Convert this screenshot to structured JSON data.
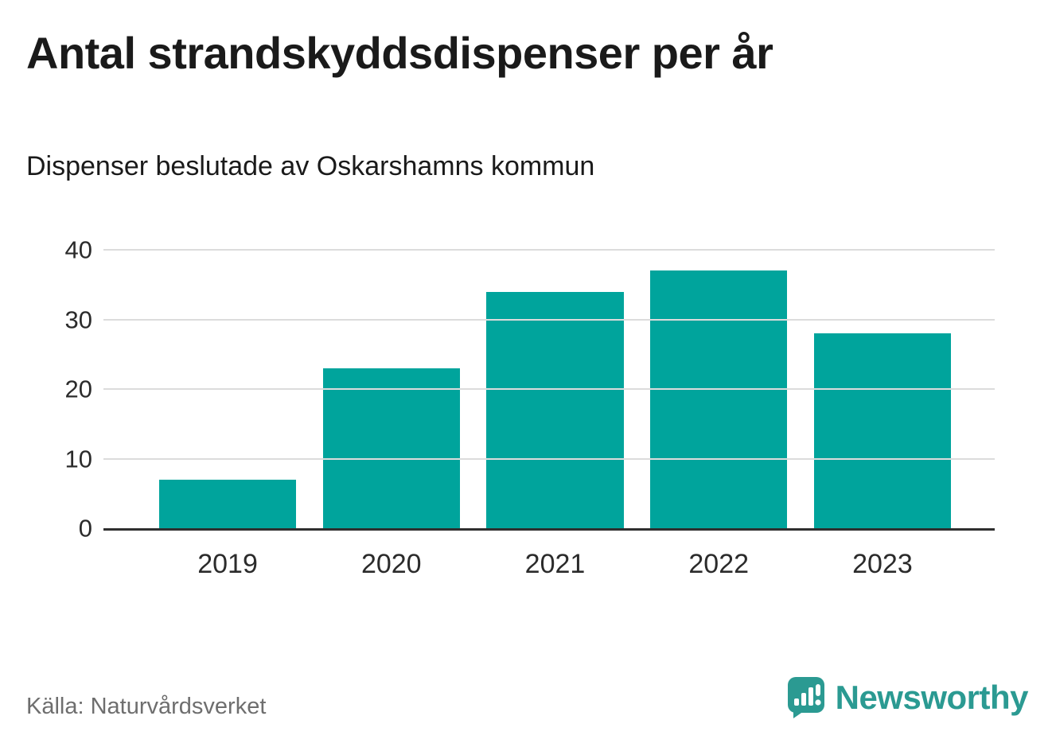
{
  "title": "Antal strandskyddsdispenser per år",
  "subtitle": "Dispenser beslutade av Oskarshamns kommun",
  "source": "Källa: Naturvårdsverket",
  "brand": {
    "name": "Newsworthy",
    "icon": "newsworthy-speech-bubble-bars-icon",
    "color": "#2b9a92"
  },
  "chart_data": {
    "type": "bar",
    "categories": [
      "2019",
      "2020",
      "2021",
      "2022",
      "2023"
    ],
    "values": [
      7,
      23,
      34,
      37,
      28
    ],
    "title": "Antal strandskyddsdispenser per år",
    "subtitle": "Dispenser beslutade av Oskarshamns kommun",
    "xlabel": "",
    "ylabel": "",
    "ylim": [
      0,
      40
    ],
    "yticks": [
      0,
      10,
      20,
      30,
      40
    ],
    "bar_color": "#00a49c",
    "axis_color": "#2f2f2f",
    "gridline_color": "#dcdcdc",
    "grid": "horizontal",
    "legend": "none"
  }
}
